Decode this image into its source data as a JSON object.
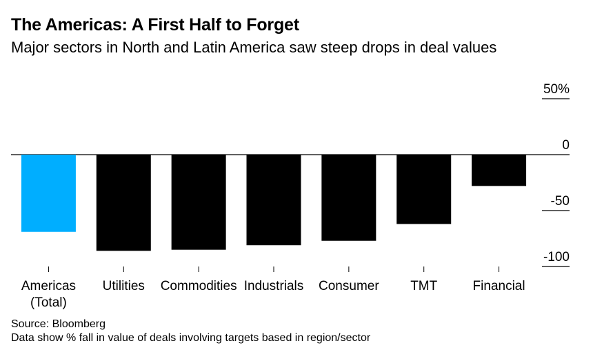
{
  "chart_data": {
    "type": "bar",
    "title": "The Americas: A First Half to Forget",
    "subtitle": "Major sectors in North and Latin America saw steep drops in deal values",
    "categories": [
      [
        "Americas",
        "(Total)"
      ],
      [
        "Utilities"
      ],
      [
        "Commodities"
      ],
      [
        "Industrials"
      ],
      [
        "Consumer"
      ],
      [
        "TMT"
      ],
      [
        "Financial"
      ]
    ],
    "values": [
      -69,
      -86,
      -85,
      -81,
      -77,
      -62,
      -28
    ],
    "highlight_index": 0,
    "colors": {
      "highlight": "#00aeff",
      "bar": "#000000",
      "axis": "#000000"
    },
    "ylim": [
      -100,
      50
    ],
    "yticks": [
      {
        "value": 50,
        "label": "50%"
      },
      {
        "value": 0,
        "label": "0"
      },
      {
        "value": -50,
        "label": "-50"
      },
      {
        "value": -100,
        "label": "-100"
      }
    ],
    "xlabel": "",
    "ylabel": ""
  },
  "footer": {
    "source": "Source: Bloomberg",
    "note": "Data show % fall in value of deals involving targets based in region/sector"
  }
}
